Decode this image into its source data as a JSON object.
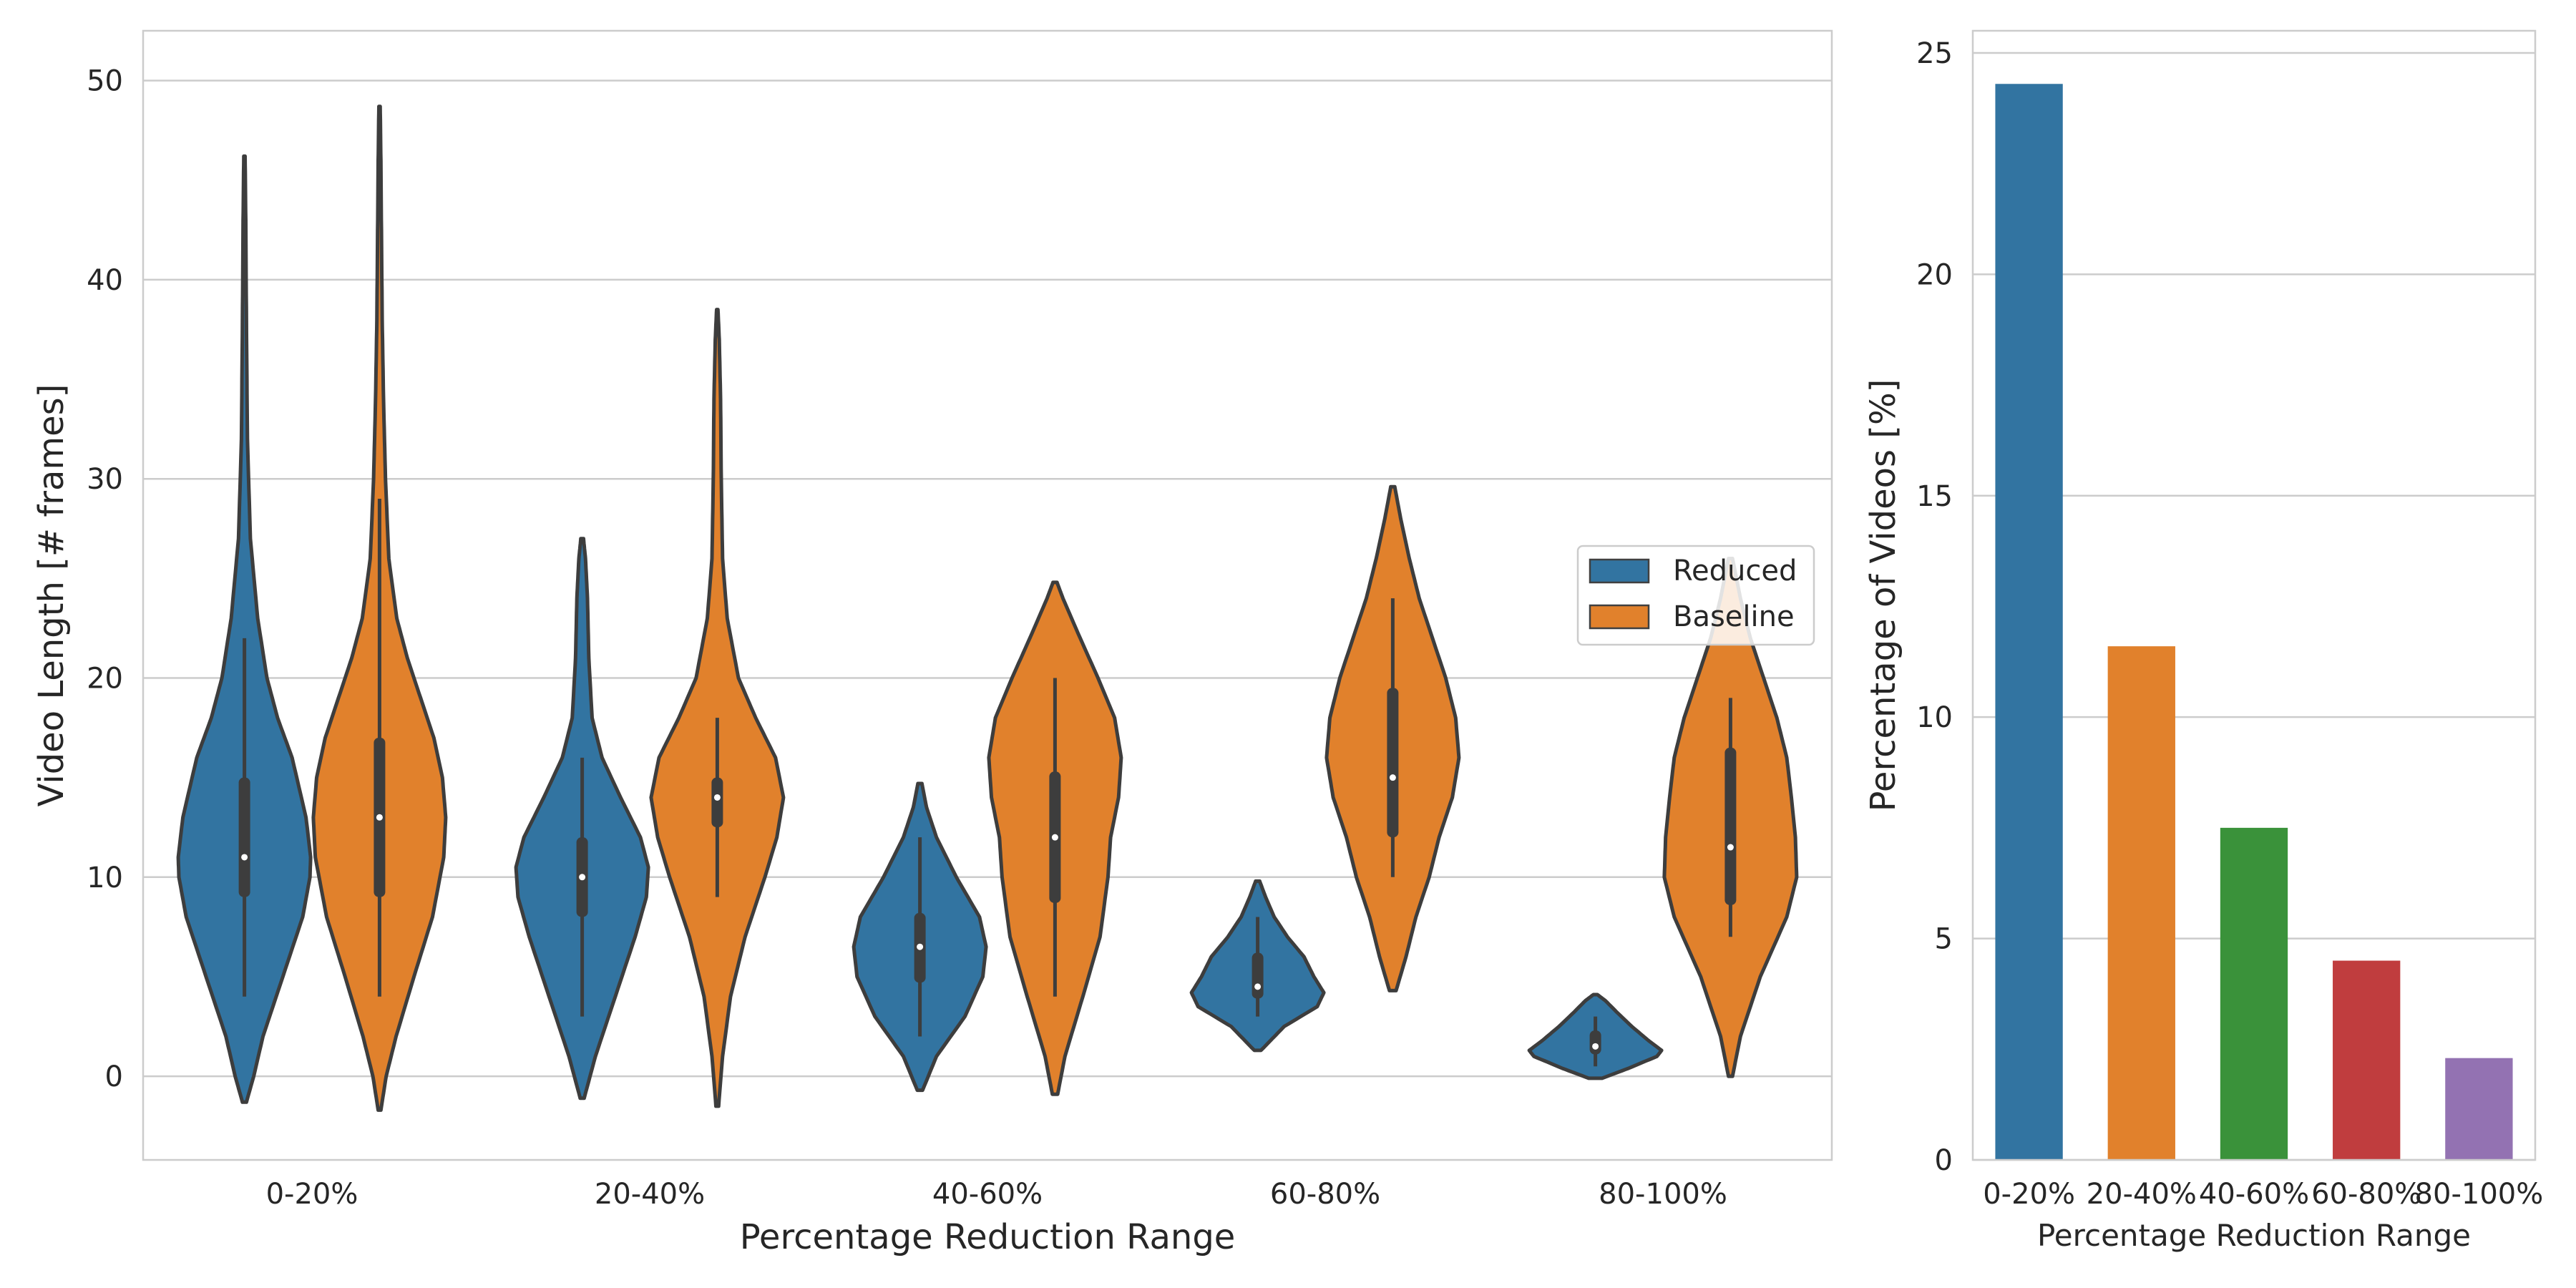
{
  "chart_data": [
    {
      "type": "violin",
      "title": "",
      "xlabel": "Percentage Reduction Range",
      "ylabel": "Video Length [# frames]",
      "categories": [
        "0-20%",
        "20-40%",
        "40-60%",
        "60-80%",
        "80-100%"
      ],
      "ylim": [
        -4.2,
        52.5
      ],
      "yticks": [
        0,
        10,
        20,
        30,
        40,
        50
      ],
      "grid": "horizontal",
      "legend": "center-right",
      "series": [
        {
          "name": "Reduced",
          "color": "#3274a1",
          "distributions": [
            {
              "min": 4,
              "q1": 9,
              "median": 11,
              "q3": 15,
              "max": 22,
              "kde_low": -1.3,
              "kde_high": 46.2,
              "profile": [
                [
                  -1.3,
                  0.03
                ],
                [
                  0,
                  0.14
                ],
                [
                  2,
                  0.28
                ],
                [
                  5,
                  0.58
                ],
                [
                  8,
                  0.88
                ],
                [
                  10,
                  0.99
                ],
                [
                  11,
                  1.0
                ],
                [
                  13,
                  0.93
                ],
                [
                  16,
                  0.72
                ],
                [
                  18,
                  0.5
                ],
                [
                  20,
                  0.34
                ],
                [
                  23,
                  0.2
                ],
                [
                  27,
                  0.09
                ],
                [
                  32,
                  0.045
                ],
                [
                  38,
                  0.03
                ],
                [
                  43,
                  0.02
                ],
                [
                  46.2,
                  0.01
                ]
              ]
            },
            {
              "min": 3,
              "q1": 8,
              "median": 10,
              "q3": 12,
              "max": 16,
              "kde_low": -1.1,
              "kde_high": 27,
              "profile": [
                [
                  -1.1,
                  0.03
                ],
                [
                  1,
                  0.2
                ],
                [
                  4,
                  0.5
                ],
                [
                  7,
                  0.8
                ],
                [
                  9,
                  0.97
                ],
                [
                  10.5,
                  1.0
                ],
                [
                  12,
                  0.88
                ],
                [
                  14,
                  0.58
                ],
                [
                  16,
                  0.3
                ],
                [
                  18,
                  0.15
                ],
                [
                  21,
                  0.1
                ],
                [
                  24,
                  0.08
                ],
                [
                  26,
                  0.05
                ],
                [
                  27,
                  0.02
                ]
              ]
            },
            {
              "min": 2,
              "q1": 4.7,
              "median": 6.5,
              "q3": 8.2,
              "max": 12,
              "kde_low": -0.7,
              "kde_high": 14.7,
              "profile": [
                [
                  -0.7,
                  0.04
                ],
                [
                  1,
                  0.25
                ],
                [
                  3,
                  0.68
                ],
                [
                  5,
                  0.95
                ],
                [
                  6.5,
                  1.0
                ],
                [
                  8,
                  0.9
                ],
                [
                  10,
                  0.55
                ],
                [
                  12,
                  0.25
                ],
                [
                  13.5,
                  0.1
                ],
                [
                  14.7,
                  0.03
                ]
              ]
            },
            {
              "min": 3,
              "q1": 3.9,
              "median": 4.5,
              "q3": 6.2,
              "max": 8,
              "kde_low": 1.3,
              "kde_high": 9.8,
              "profile": [
                [
                  1.3,
                  0.05
                ],
                [
                  2.5,
                  0.4
                ],
                [
                  3.5,
                  0.9
                ],
                [
                  4.2,
                  1.0
                ],
                [
                  5,
                  0.85
                ],
                [
                  6,
                  0.7
                ],
                [
                  7,
                  0.45
                ],
                [
                  8,
                  0.25
                ],
                [
                  9,
                  0.12
                ],
                [
                  9.8,
                  0.03
                ]
              ]
            },
            {
              "min": 0.5,
              "q1": 1.1,
              "median": 1.5,
              "q3": 2.3,
              "max": 3,
              "kde_low": -0.1,
              "kde_high": 4.1,
              "profile": [
                [
                  -0.1,
                  0.1
                ],
                [
                  0.4,
                  0.5
                ],
                [
                  1,
                  0.93
                ],
                [
                  1.3,
                  1.0
                ],
                [
                  1.8,
                  0.8
                ],
                [
                  2.5,
                  0.55
                ],
                [
                  3.2,
                  0.33
                ],
                [
                  3.8,
                  0.15
                ],
                [
                  4.1,
                  0.03
                ]
              ]
            }
          ]
        },
        {
          "name": "Baseline",
          "color": "#e1812c",
          "distributions": [
            {
              "min": 4,
              "q1": 9,
              "median": 13,
              "q3": 17,
              "max": 29,
              "kde_low": -1.7,
              "kde_high": 48.7,
              "profile": [
                [
                  -1.7,
                  0.02
                ],
                [
                  0,
                  0.1
                ],
                [
                  2,
                  0.25
                ],
                [
                  5,
                  0.52
                ],
                [
                  8,
                  0.8
                ],
                [
                  11,
                  0.97
                ],
                [
                  13,
                  1.0
                ],
                [
                  15,
                  0.95
                ],
                [
                  17,
                  0.82
                ],
                [
                  19,
                  0.62
                ],
                [
                  21,
                  0.42
                ],
                [
                  23,
                  0.26
                ],
                [
                  26,
                  0.14
                ],
                [
                  30,
                  0.09
                ],
                [
                  34,
                  0.06
                ],
                [
                  38,
                  0.04
                ],
                [
                  42,
                  0.03
                ],
                [
                  46,
                  0.02
                ],
                [
                  48.7,
                  0.01
                ]
              ]
            },
            {
              "min": 9,
              "q1": 12.5,
              "median": 14,
              "q3": 15,
              "max": 18,
              "kde_low": -1.5,
              "kde_high": 38.5,
              "profile": [
                [
                  -1.5,
                  0.02
                ],
                [
                  1,
                  0.08
                ],
                [
                  4,
                  0.2
                ],
                [
                  7,
                  0.42
                ],
                [
                  10,
                  0.72
                ],
                [
                  12,
                  0.9
                ],
                [
                  14,
                  1.0
                ],
                [
                  16,
                  0.88
                ],
                [
                  18,
                  0.58
                ],
                [
                  20,
                  0.32
                ],
                [
                  23,
                  0.15
                ],
                [
                  26,
                  0.08
                ],
                [
                  30,
                  0.06
                ],
                [
                  34,
                  0.05
                ],
                [
                  37,
                  0.03
                ],
                [
                  38.5,
                  0.01
                ]
              ]
            },
            {
              "min": 4,
              "q1": 8.7,
              "median": 12,
              "q3": 15.3,
              "max": 20,
              "kde_low": -0.9,
              "kde_high": 24.8,
              "profile": [
                [
                  -0.9,
                  0.04
                ],
                [
                  1,
                  0.15
                ],
                [
                  4,
                  0.42
                ],
                [
                  7,
                  0.68
                ],
                [
                  10,
                  0.8
                ],
                [
                  12,
                  0.84
                ],
                [
                  14,
                  0.96
                ],
                [
                  16,
                  1.0
                ],
                [
                  18,
                  0.9
                ],
                [
                  20,
                  0.65
                ],
                [
                  22,
                  0.38
                ],
                [
                  24,
                  0.12
                ],
                [
                  24.8,
                  0.03
                ]
              ]
            },
            {
              "min": 10,
              "q1": 12,
              "median": 15,
              "q3": 19.5,
              "max": 24,
              "kde_low": 4.3,
              "kde_high": 29.6,
              "profile": [
                [
                  4.3,
                  0.05
                ],
                [
                  6,
                  0.2
                ],
                [
                  8,
                  0.35
                ],
                [
                  10,
                  0.55
                ],
                [
                  12,
                  0.7
                ],
                [
                  14,
                  0.9
                ],
                [
                  16,
                  1.0
                ],
                [
                  18,
                  0.95
                ],
                [
                  20,
                  0.8
                ],
                [
                  22,
                  0.6
                ],
                [
                  24,
                  0.4
                ],
                [
                  26,
                  0.25
                ],
                [
                  28,
                  0.12
                ],
                [
                  29.6,
                  0.03
                ]
              ]
            },
            {
              "min": 7,
              "q1": 8.6,
              "median": 11.5,
              "q3": 16.5,
              "max": 19,
              "kde_low": 0,
              "kde_high": 26,
              "profile": [
                [
                  0,
                  0.03
                ],
                [
                  2,
                  0.15
                ],
                [
                  5,
                  0.45
                ],
                [
                  8,
                  0.85
                ],
                [
                  10,
                  1.0
                ],
                [
                  12,
                  0.98
                ],
                [
                  14,
                  0.92
                ],
                [
                  16,
                  0.85
                ],
                [
                  18,
                  0.7
                ],
                [
                  20,
                  0.5
                ],
                [
                  22,
                  0.3
                ],
                [
                  24,
                  0.15
                ],
                [
                  26,
                  0.03
                ]
              ]
            }
          ]
        }
      ]
    },
    {
      "type": "bar",
      "title": "",
      "xlabel": "Percentage Reduction Range",
      "ylabel": "Percentage of Videos [%]",
      "categories": [
        "0-20%",
        "20-40%",
        "40-60%",
        "60-80%",
        "80-100%"
      ],
      "values": [
        24.3,
        11.6,
        7.5,
        4.5,
        2.3
      ],
      "colors": [
        "#3274a1",
        "#e1812c",
        "#3a923a",
        "#c03d3e",
        "#9372b2"
      ],
      "ylim": [
        0,
        25.5
      ],
      "yticks": [
        0,
        5,
        10,
        15,
        20,
        25
      ],
      "grid": "horizontal"
    }
  ]
}
